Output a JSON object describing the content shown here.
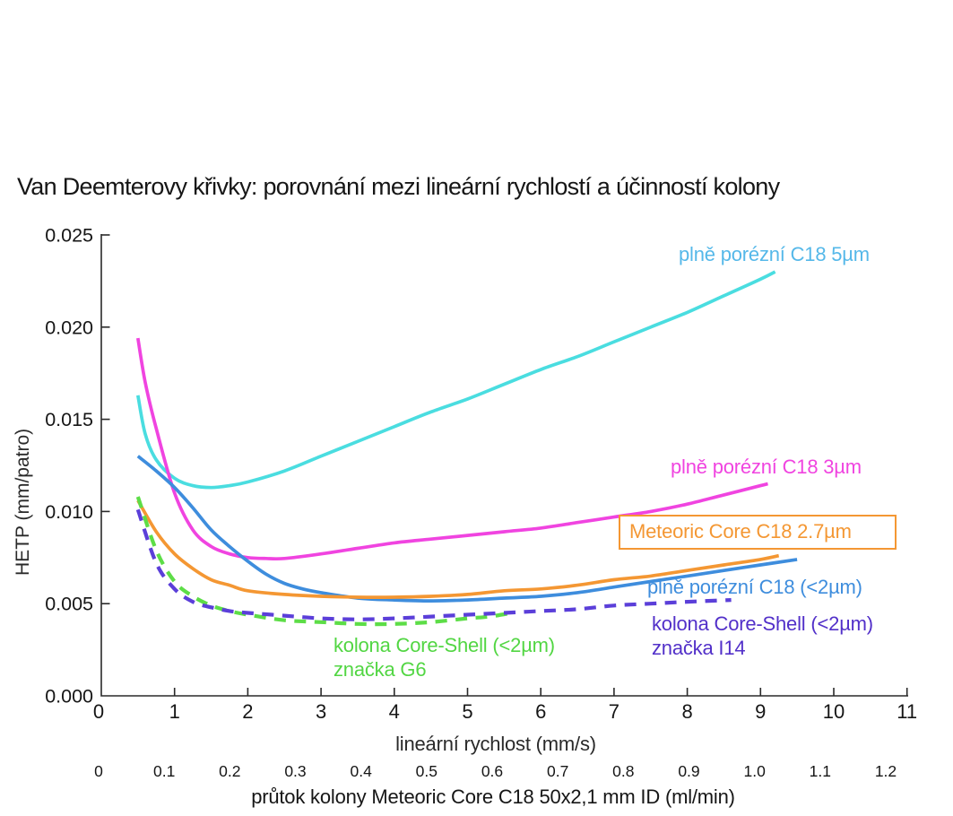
{
  "title": "Van Deemterovy křivky: porovnání mezi lineární rychlostí a účinností kolony",
  "chart_data": {
    "type": "line",
    "title": "Van Deemterovy křivky: porovnání mezi lineární rychlostí a účinností kolony",
    "grid": false,
    "legend_position": "labels-next-to-curves",
    "x_axis": {
      "label": "lineární rychlost (mm/s)",
      "ticks": [
        "0",
        "1",
        "2",
        "3",
        "4",
        "5",
        "6",
        "7",
        "8",
        "9",
        "10",
        "11"
      ],
      "range": [
        0,
        11
      ]
    },
    "y_axis": {
      "label": "HETP (mm/patro)",
      "ticks": [
        "0.000",
        "0.005",
        "0.010",
        "0.015",
        "0.020",
        "0.025"
      ],
      "range": [
        0,
        0.025
      ]
    },
    "x_axis2": {
      "label": "průtok kolony Meteoric Core C18 50x2,1 mm ID (ml/min)",
      "ticks": [
        "0",
        "0.1",
        "0.2",
        "0.3",
        "0.4",
        "0.5",
        "0.6",
        "0.7",
        "0.8",
        "0.9",
        "1.0",
        "1.1",
        "1.2"
      ],
      "range": [
        0,
        1.2
      ]
    },
    "series": [
      {
        "name": "plne-porezni-c18-5um",
        "label": "plně porézní C18 5µm",
        "color": "#4adde0",
        "label_color": "#55b8e9",
        "dash": false,
        "points": [
          [
            0.5,
            0.0163
          ],
          [
            0.6,
            0.0142
          ],
          [
            0.75,
            0.0128
          ],
          [
            1,
            0.0118
          ],
          [
            1.25,
            0.0114
          ],
          [
            1.5,
            0.0113
          ],
          [
            1.75,
            0.0114
          ],
          [
            2,
            0.0116
          ],
          [
            2.5,
            0.0122
          ],
          [
            3,
            0.013
          ],
          [
            3.5,
            0.0138
          ],
          [
            4,
            0.0146
          ],
          [
            4.5,
            0.0154
          ],
          [
            5,
            0.0161
          ],
          [
            5.5,
            0.0169
          ],
          [
            6,
            0.0177
          ],
          [
            6.5,
            0.0184
          ],
          [
            7,
            0.0192
          ],
          [
            7.5,
            0.02
          ],
          [
            8,
            0.0208
          ],
          [
            8.5,
            0.0217
          ],
          [
            9,
            0.0226
          ],
          [
            9.2,
            0.023
          ]
        ]
      },
      {
        "name": "plne-porezni-c18-3um",
        "label": "plně porézní C18 3µm",
        "color": "#f044e0",
        "label_color": "#f044e0",
        "dash": false,
        "points": [
          [
            0.5,
            0.0194
          ],
          [
            0.6,
            0.017
          ],
          [
            0.75,
            0.0145
          ],
          [
            1,
            0.011
          ],
          [
            1.25,
            0.009
          ],
          [
            1.5,
            0.0081
          ],
          [
            1.75,
            0.0077
          ],
          [
            2,
            0.0075
          ],
          [
            2.25,
            0.00745
          ],
          [
            2.5,
            0.00745
          ],
          [
            3,
            0.0077
          ],
          [
            3.5,
            0.008
          ],
          [
            4,
            0.0083
          ],
          [
            4.5,
            0.0085
          ],
          [
            5,
            0.0087
          ],
          [
            5.5,
            0.0089
          ],
          [
            6,
            0.0091
          ],
          [
            6.5,
            0.0094
          ],
          [
            7,
            0.0097
          ],
          [
            7.5,
            0.01
          ],
          [
            8,
            0.0104
          ],
          [
            8.5,
            0.0109
          ],
          [
            9,
            0.0114
          ],
          [
            9.1,
            0.0115
          ]
        ]
      },
      {
        "name": "meteoric-core-c18-2-7um",
        "label": "Meteoric Core C18 2.7µm",
        "color": "#f49733",
        "label_color": "#f49733",
        "dash": false,
        "points": [
          [
            0.5,
            0.0106
          ],
          [
            0.75,
            0.0089
          ],
          [
            1,
            0.0077
          ],
          [
            1.25,
            0.0069
          ],
          [
            1.5,
            0.0063
          ],
          [
            1.75,
            0.006
          ],
          [
            2,
            0.0057
          ],
          [
            2.5,
            0.0055
          ],
          [
            3,
            0.0054
          ],
          [
            3.5,
            0.00535
          ],
          [
            4,
            0.00535
          ],
          [
            4.5,
            0.0054
          ],
          [
            5,
            0.0055
          ],
          [
            5.5,
            0.0057
          ],
          [
            6,
            0.0058
          ],
          [
            6.5,
            0.006
          ],
          [
            7,
            0.0063
          ],
          [
            7.5,
            0.0065
          ],
          [
            8,
            0.0068
          ],
          [
            8.5,
            0.0071
          ],
          [
            9,
            0.0074
          ],
          [
            9.25,
            0.0076
          ]
        ]
      },
      {
        "name": "plne-porezni-c18-sub2um",
        "label": "plně porézní C18 (<2µm)",
        "color": "#3e8ddd",
        "label_color": "#3e8ddd",
        "dash": false,
        "points": [
          [
            0.5,
            0.013
          ],
          [
            0.75,
            0.0122
          ],
          [
            1,
            0.0113
          ],
          [
            1.25,
            0.0102
          ],
          [
            1.5,
            0.009
          ],
          [
            1.75,
            0.0081
          ],
          [
            2,
            0.0073
          ],
          [
            2.25,
            0.0066
          ],
          [
            2.5,
            0.0061
          ],
          [
            2.75,
            0.0058
          ],
          [
            3,
            0.0056
          ],
          [
            3.5,
            0.0053
          ],
          [
            4,
            0.0052
          ],
          [
            4.5,
            0.00515
          ],
          [
            5,
            0.0052
          ],
          [
            5.5,
            0.0053
          ],
          [
            6,
            0.0054
          ],
          [
            6.5,
            0.0056
          ],
          [
            7,
            0.0059
          ],
          [
            7.5,
            0.0062
          ],
          [
            8,
            0.0065
          ],
          [
            8.5,
            0.0068
          ],
          [
            9,
            0.0071
          ],
          [
            9.5,
            0.0074
          ]
        ]
      },
      {
        "name": "core-shell-sub2um-i14",
        "label": "kolona Core-Shell (<2µm)",
        "label2": "značka I14",
        "color": "#5b3fd9",
        "label_color": "#5230c9",
        "dash": true,
        "points": [
          [
            0.5,
            0.0101
          ],
          [
            0.75,
            0.0072
          ],
          [
            1,
            0.0058
          ],
          [
            1.25,
            0.0051
          ],
          [
            1.5,
            0.0048
          ],
          [
            1.75,
            0.0046
          ],
          [
            2,
            0.0045
          ],
          [
            2.5,
            0.00435
          ],
          [
            3,
            0.0042
          ],
          [
            3.5,
            0.00415
          ],
          [
            4,
            0.0042
          ],
          [
            4.5,
            0.0043
          ],
          [
            5,
            0.0044
          ],
          [
            5.5,
            0.0045
          ],
          [
            6,
            0.0046
          ],
          [
            6.5,
            0.0047
          ],
          [
            7,
            0.0049
          ],
          [
            7.5,
            0.005
          ],
          [
            8,
            0.0051
          ],
          [
            8.6,
            0.0052
          ]
        ]
      },
      {
        "name": "core-shell-sub2um-g6",
        "label": "kolona Core-Shell (<2µm)",
        "label2": "značka G6",
        "color": "#5ddd47",
        "label_color": "#52d643",
        "dash": true,
        "points": [
          [
            0.5,
            0.0108
          ],
          [
            0.75,
            0.0079
          ],
          [
            1,
            0.0062
          ],
          [
            1.25,
            0.0054
          ],
          [
            1.5,
            0.0049
          ],
          [
            1.75,
            0.0046
          ],
          [
            2,
            0.0044
          ],
          [
            2.5,
            0.0041
          ],
          [
            3,
            0.004
          ],
          [
            3.5,
            0.0039
          ],
          [
            4,
            0.0039
          ],
          [
            4.5,
            0.004
          ],
          [
            5,
            0.0042
          ],
          [
            5.3,
            0.0043
          ],
          [
            5.6,
            0.0045
          ]
        ]
      }
    ]
  }
}
